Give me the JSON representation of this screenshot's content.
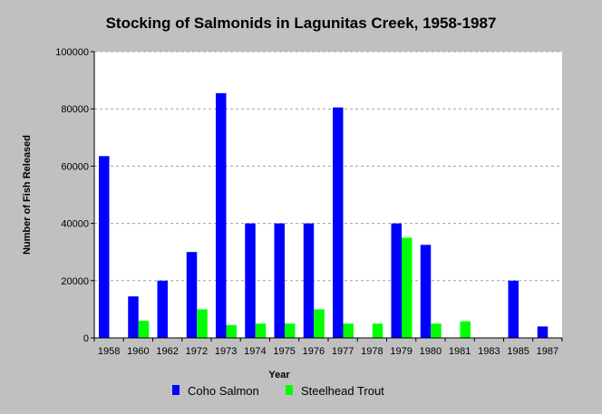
{
  "chart_data": {
    "type": "bar",
    "title": "Stocking of Salmonids in Lagunitas Creek, 1958-1987",
    "xlabel": "Year",
    "ylabel": "Number of Fish Released",
    "categories": [
      "1958",
      "1960",
      "1962",
      "1972",
      "1973",
      "1974",
      "1975",
      "1976",
      "1977",
      "1978",
      "1979",
      "1980",
      "1981",
      "1983",
      "1985",
      "1987"
    ],
    "series": [
      {
        "name": "Coho Salmon",
        "color": "#0000ff",
        "values": [
          63500,
          14500,
          20000,
          30000,
          85500,
          40000,
          40000,
          40000,
          80500,
          0,
          40000,
          32500,
          0,
          0,
          20000,
          4000
        ]
      },
      {
        "name": "Steelhead Trout",
        "color": "#00ff00",
        "values": [
          0,
          6000,
          0,
          10000,
          4500,
          5000,
          5000,
          10000,
          5000,
          5000,
          35000,
          5000,
          5800,
          0,
          0,
          0
        ]
      }
    ],
    "ylim": [
      0,
      100000
    ],
    "yticks": [
      "0",
      "20000",
      "40000",
      "60000",
      "80000",
      "100000"
    ],
    "grid": true,
    "legend_position": "bottom"
  }
}
